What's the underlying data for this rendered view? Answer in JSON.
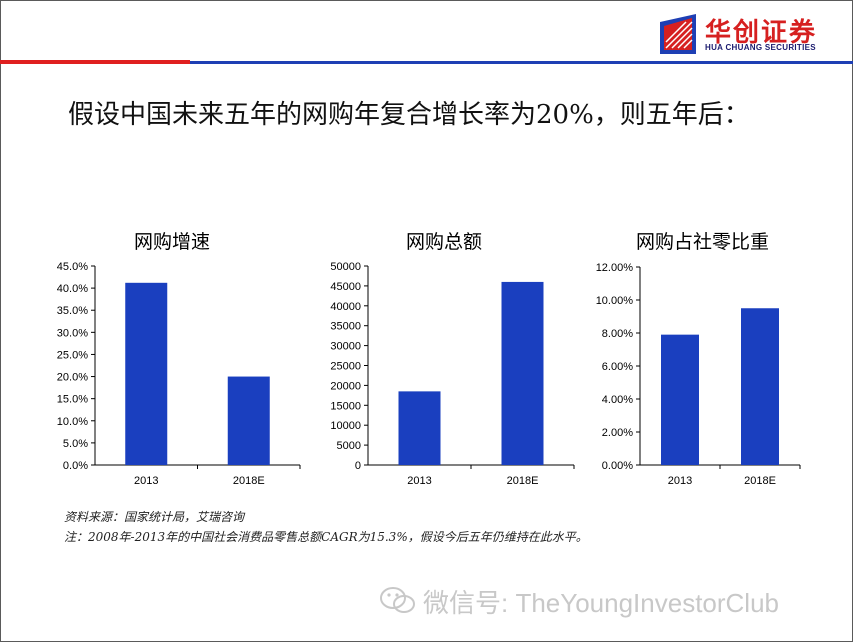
{
  "brand": {
    "name": "华创证券",
    "subname": "HUA CHUANG SECURITIES",
    "colors": {
      "red": "#e02020",
      "blue": "#1e3fb4",
      "bar": "#1a3fbf"
    }
  },
  "headline": "假设中国未来五年的网购年复合增长率为20%，则五年后：",
  "charts": {
    "growth": {
      "title": "网购增速"
    },
    "total": {
      "title": "网购总额"
    },
    "share": {
      "title": "网购占社零比重"
    }
  },
  "chart_data": [
    {
      "type": "bar",
      "title": "网购增速",
      "categories": [
        "2013",
        "2018E"
      ],
      "values": [
        0.412,
        0.2
      ],
      "ylim": [
        0,
        0.45
      ],
      "yticks": [
        "0.0%",
        "5.0%",
        "10.0%",
        "15.0%",
        "20.0%",
        "25.0%",
        "30.0%",
        "35.0%",
        "40.0%",
        "45.0%"
      ],
      "grid": false
    },
    {
      "type": "bar",
      "title": "网购总额",
      "categories": [
        "2013",
        "2018E"
      ],
      "values": [
        18500,
        46000
      ],
      "ylim": [
        0,
        50000
      ],
      "yticks": [
        "0",
        "5000",
        "10000",
        "15000",
        "20000",
        "25000",
        "30000",
        "35000",
        "40000",
        "45000",
        "50000"
      ],
      "grid": false
    },
    {
      "type": "bar",
      "title": "网购占社零比重",
      "categories": [
        "2013",
        "2018E"
      ],
      "values": [
        0.079,
        0.095
      ],
      "ylim": [
        0,
        0.12
      ],
      "yticks": [
        "0.00%",
        "2.00%",
        "4.00%",
        "6.00%",
        "8.00%",
        "10.00%",
        "12.00%"
      ],
      "grid": false
    }
  ],
  "notes": {
    "source": "资料来源：国家统计局，艾瑞咨询",
    "remark": "注：2008年-2013年的中国社会消费品零售总额CAGR为15.3%，假设今后五年仍维持在此水平。"
  },
  "watermark": {
    "text": "微信号: TheYoungInvestorClub",
    "icon": "wechat-icon"
  }
}
